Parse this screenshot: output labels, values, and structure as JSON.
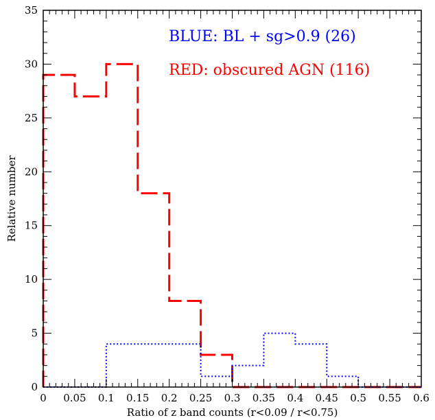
{
  "chart_data": {
    "type": "step-histogram",
    "xlabel": "Ratio of z band counts (r<0.09 / r<0.75)",
    "ylabel": "Relative number",
    "xlim": [
      0,
      0.6
    ],
    "ylim": [
      0,
      35
    ],
    "x_ticks": [
      0,
      0.05,
      0.1,
      0.15,
      0.2,
      0.25,
      0.3,
      0.35,
      0.4,
      0.45,
      0.5,
      0.55,
      0.6
    ],
    "x_tick_labels": [
      "0",
      "0.05",
      "0.1",
      "0.15",
      "0.2",
      "0.25",
      "0.3",
      "0.35",
      "0.4",
      "0.45",
      "0.5",
      "0.55",
      "0.6"
    ],
    "y_ticks": [
      0,
      5,
      10,
      15,
      20,
      25,
      30,
      35
    ],
    "y_tick_labels": [
      "0",
      "5",
      "10",
      "15",
      "20",
      "25",
      "30",
      "35"
    ],
    "bin_edges": [
      0,
      0.05,
      0.1,
      0.15,
      0.2,
      0.25,
      0.3,
      0.35,
      0.4,
      0.45,
      0.5,
      0.55,
      0.6
    ],
    "series": [
      {
        "color": "#ff0000",
        "line_style": "dashed",
        "values": [
          29,
          27,
          30,
          18,
          8,
          3,
          0,
          0,
          0,
          0,
          0,
          0
        ]
      },
      {
        "color": "#0000ff",
        "line_style": "dotted",
        "values": [
          0,
          0,
          4,
          4,
          4,
          1,
          2,
          5,
          4,
          1,
          0,
          0
        ]
      }
    ],
    "legend": [
      {
        "text": "BLUE: BL + sg>0.9 (26)",
        "color": "#0000ff"
      },
      {
        "text": "RED: obscured AGN (116)",
        "color": "#ff0000"
      }
    ],
    "legend_placement": "top-right",
    "grid": false
  }
}
